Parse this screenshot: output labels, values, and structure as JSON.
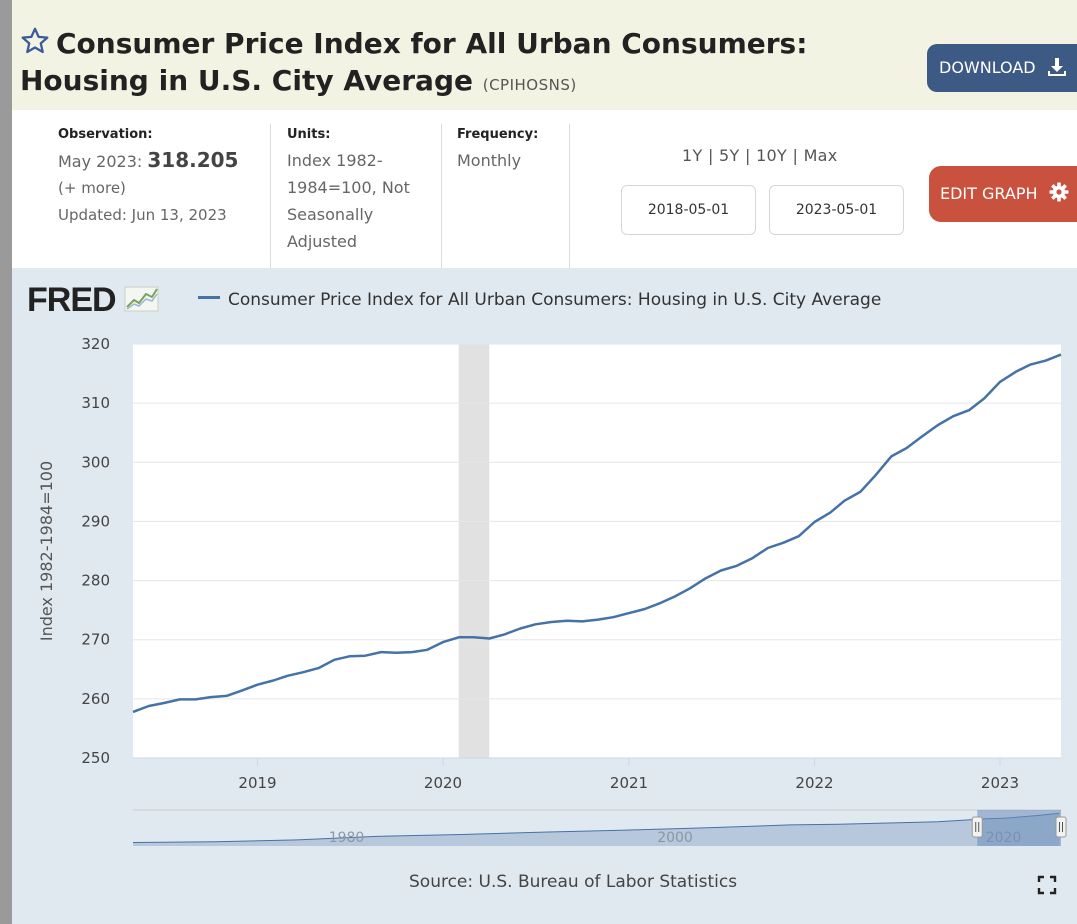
{
  "header": {
    "title": "Consumer Price Index for All Urban Consumers: Housing in U.S. City Average",
    "series_id": "(CPIHOSNS)",
    "download_label": "DOWNLOAD"
  },
  "meta": {
    "observation_label": "Observation:",
    "observation_date": "May 2023:",
    "observation_value": "318.205",
    "more_label": "(+ more)",
    "updated": "Updated: Jun 13, 2023",
    "units_label": "Units:",
    "units_value": "Index 1982-1984=100, Not Seasonally Adjusted",
    "frequency_label": "Frequency:",
    "frequency_value": "Monthly"
  },
  "controls": {
    "ranges": [
      "1Y",
      "5Y",
      "10Y",
      "Max"
    ],
    "start_date": "2018-05-01",
    "end_date": "2023-05-01",
    "edit_label": "EDIT GRAPH"
  },
  "icons": {
    "favorite": "star-icon",
    "download": "download-icon",
    "edit": "gear-icon",
    "fullscreen": "fullscreen-icon",
    "logo_mark": "chart-line-icon"
  },
  "colors": {
    "series": "#4572a7",
    "recession": "#e1e1e1",
    "download_button": "#3c5a84",
    "edit_button": "#c8523e",
    "title_band": "#f2f3e2",
    "chart_background": "#e1e9f0"
  },
  "chart_data": {
    "type": "line",
    "logo": "FRED",
    "title": "",
    "ylabel": "Index 1982-1984=100",
    "xlabel": "",
    "ylim": [
      250,
      320
    ],
    "yticks": [
      250,
      260,
      270,
      280,
      290,
      300,
      310,
      320
    ],
    "xlim": [
      "2018-05-01",
      "2023-05-01"
    ],
    "xticks": [
      "2019",
      "2020",
      "2021",
      "2022",
      "2023"
    ],
    "grid": true,
    "recession_shading": [
      [
        "2020-02-01",
        "2020-04-01"
      ]
    ],
    "series": [
      {
        "name": "Consumer Price Index for All Urban Consumers: Housing in U.S. City Average",
        "x": [
          "2018-05",
          "2018-06",
          "2018-07",
          "2018-08",
          "2018-09",
          "2018-10",
          "2018-11",
          "2018-12",
          "2019-01",
          "2019-02",
          "2019-03",
          "2019-04",
          "2019-05",
          "2019-06",
          "2019-07",
          "2019-08",
          "2019-09",
          "2019-10",
          "2019-11",
          "2019-12",
          "2020-01",
          "2020-02",
          "2020-03",
          "2020-04",
          "2020-05",
          "2020-06",
          "2020-07",
          "2020-08",
          "2020-09",
          "2020-10",
          "2020-11",
          "2020-12",
          "2021-01",
          "2021-02",
          "2021-03",
          "2021-04",
          "2021-05",
          "2021-06",
          "2021-07",
          "2021-08",
          "2021-09",
          "2021-10",
          "2021-11",
          "2021-12",
          "2022-01",
          "2022-02",
          "2022-03",
          "2022-04",
          "2022-05",
          "2022-06",
          "2022-07",
          "2022-08",
          "2022-09",
          "2022-10",
          "2022-11",
          "2022-12",
          "2023-01",
          "2023-02",
          "2023-03",
          "2023-04",
          "2023-05"
        ],
        "values": [
          257.8,
          258.8,
          259.3,
          259.9,
          259.9,
          260.3,
          260.5,
          261.4,
          262.4,
          263.1,
          263.9,
          264.5,
          265.2,
          266.6,
          267.2,
          267.3,
          267.9,
          267.8,
          267.9,
          268.3,
          269.6,
          270.4,
          270.4,
          270.2,
          270.9,
          271.9,
          272.6,
          273.0,
          273.2,
          273.1,
          273.4,
          273.8,
          274.5,
          275.2,
          276.1,
          277.3,
          278.7,
          280.4,
          281.7,
          282.5,
          283.8,
          285.5,
          286.4,
          287.5,
          289.9,
          291.5,
          293.5,
          295.0,
          297.8,
          301.0,
          302.4,
          304.4,
          306.3,
          307.8,
          308.8,
          310.8,
          313.6,
          315.3,
          316.5,
          317.2,
          318.2
        ]
      }
    ],
    "navigator": {
      "xtick_labels": [
        "1980",
        "2000",
        "2020"
      ]
    },
    "source": "Source: U.S. Bureau of Labor Statistics"
  }
}
